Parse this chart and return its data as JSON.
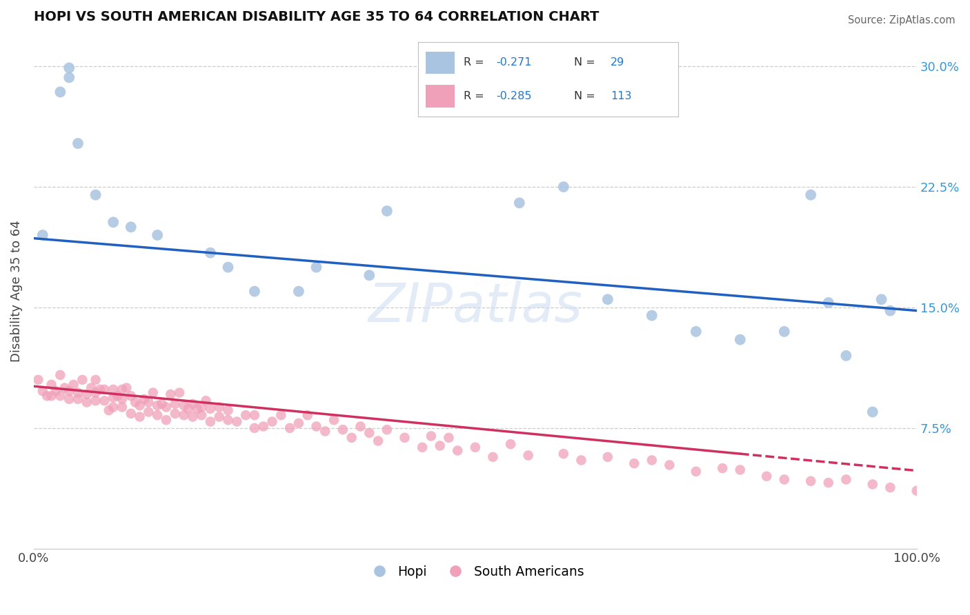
{
  "title": "HOPI VS SOUTH AMERICAN DISABILITY AGE 35 TO 64 CORRELATION CHART",
  "source": "Source: ZipAtlas.com",
  "ylabel": "Disability Age 35 to 64",
  "xlim": [
    0,
    1.0
  ],
  "ylim": [
    0,
    0.32
  ],
  "xticks": [
    0.0,
    1.0
  ],
  "xticklabels": [
    "0.0%",
    "100.0%"
  ],
  "yticks": [
    0.075,
    0.15,
    0.225,
    0.3
  ],
  "yticklabels": [
    "7.5%",
    "15.0%",
    "22.5%",
    "30.0%"
  ],
  "hopi_color": "#a8c4e0",
  "hopi_line_color": "#2060c0",
  "sa_color": "#f0a0b8",
  "sa_line_color": "#d03060",
  "watermark": "ZIPatlas",
  "hopi_scatter_x": [
    0.01,
    0.03,
    0.04,
    0.04,
    0.05,
    0.07,
    0.09,
    0.11,
    0.14,
    0.2,
    0.22,
    0.25,
    0.3,
    0.32,
    0.38,
    0.4,
    0.55,
    0.6,
    0.65,
    0.7,
    0.75,
    0.8,
    0.85,
    0.88,
    0.9,
    0.92,
    0.95,
    0.96,
    0.97
  ],
  "hopi_scatter_y": [
    0.195,
    0.284,
    0.293,
    0.299,
    0.252,
    0.22,
    0.203,
    0.2,
    0.195,
    0.184,
    0.175,
    0.16,
    0.16,
    0.175,
    0.17,
    0.21,
    0.215,
    0.225,
    0.155,
    0.145,
    0.135,
    0.13,
    0.135,
    0.22,
    0.153,
    0.12,
    0.085,
    0.155,
    0.148
  ],
  "sa_scatter_x": [
    0.005,
    0.01,
    0.015,
    0.02,
    0.02,
    0.025,
    0.03,
    0.03,
    0.035,
    0.04,
    0.04,
    0.045,
    0.05,
    0.05,
    0.055,
    0.06,
    0.06,
    0.065,
    0.07,
    0.07,
    0.07,
    0.075,
    0.08,
    0.08,
    0.085,
    0.09,
    0.09,
    0.09,
    0.095,
    0.1,
    0.1,
    0.1,
    0.105,
    0.11,
    0.11,
    0.115,
    0.12,
    0.12,
    0.125,
    0.13,
    0.13,
    0.135,
    0.14,
    0.14,
    0.145,
    0.15,
    0.15,
    0.155,
    0.16,
    0.16,
    0.165,
    0.17,
    0.17,
    0.175,
    0.18,
    0.18,
    0.185,
    0.19,
    0.19,
    0.195,
    0.2,
    0.2,
    0.21,
    0.21,
    0.22,
    0.22,
    0.23,
    0.24,
    0.25,
    0.25,
    0.26,
    0.27,
    0.28,
    0.29,
    0.3,
    0.31,
    0.32,
    0.33,
    0.34,
    0.35,
    0.36,
    0.37,
    0.38,
    0.39,
    0.4,
    0.42,
    0.44,
    0.45,
    0.46,
    0.47,
    0.48,
    0.5,
    0.52,
    0.54,
    0.56,
    0.6,
    0.62,
    0.65,
    0.68,
    0.7,
    0.72,
    0.75,
    0.78,
    0.8,
    0.83,
    0.85,
    0.88,
    0.9,
    0.92,
    0.95,
    0.97,
    1.0
  ],
  "sa_scatter_y": [
    0.105,
    0.098,
    0.095,
    0.095,
    0.102,
    0.098,
    0.095,
    0.108,
    0.1,
    0.098,
    0.093,
    0.102,
    0.097,
    0.093,
    0.105,
    0.096,
    0.091,
    0.1,
    0.097,
    0.092,
    0.105,
    0.099,
    0.099,
    0.092,
    0.086,
    0.094,
    0.099,
    0.088,
    0.095,
    0.093,
    0.099,
    0.088,
    0.1,
    0.084,
    0.095,
    0.091,
    0.089,
    0.082,
    0.093,
    0.085,
    0.091,
    0.097,
    0.089,
    0.083,
    0.09,
    0.08,
    0.088,
    0.096,
    0.084,
    0.09,
    0.097,
    0.083,
    0.089,
    0.087,
    0.082,
    0.09,
    0.087,
    0.088,
    0.083,
    0.092,
    0.079,
    0.087,
    0.082,
    0.088,
    0.08,
    0.086,
    0.079,
    0.083,
    0.075,
    0.083,
    0.076,
    0.079,
    0.083,
    0.075,
    0.078,
    0.083,
    0.076,
    0.073,
    0.08,
    0.074,
    0.069,
    0.076,
    0.072,
    0.067,
    0.074,
    0.069,
    0.063,
    0.07,
    0.064,
    0.069,
    0.061,
    0.063,
    0.057,
    0.065,
    0.058,
    0.059,
    0.055,
    0.057,
    0.053,
    0.055,
    0.052,
    0.048,
    0.05,
    0.049,
    0.045,
    0.043,
    0.042,
    0.041,
    0.043,
    0.04,
    0.038,
    0.036
  ],
  "hopi_trendline_x": [
    0.0,
    1.0
  ],
  "hopi_trendline_y": [
    0.193,
    0.148
  ],
  "sa_trendline_x": [
    0.0,
    0.8
  ],
  "sa_trendline_y": [
    0.101,
    0.059
  ]
}
